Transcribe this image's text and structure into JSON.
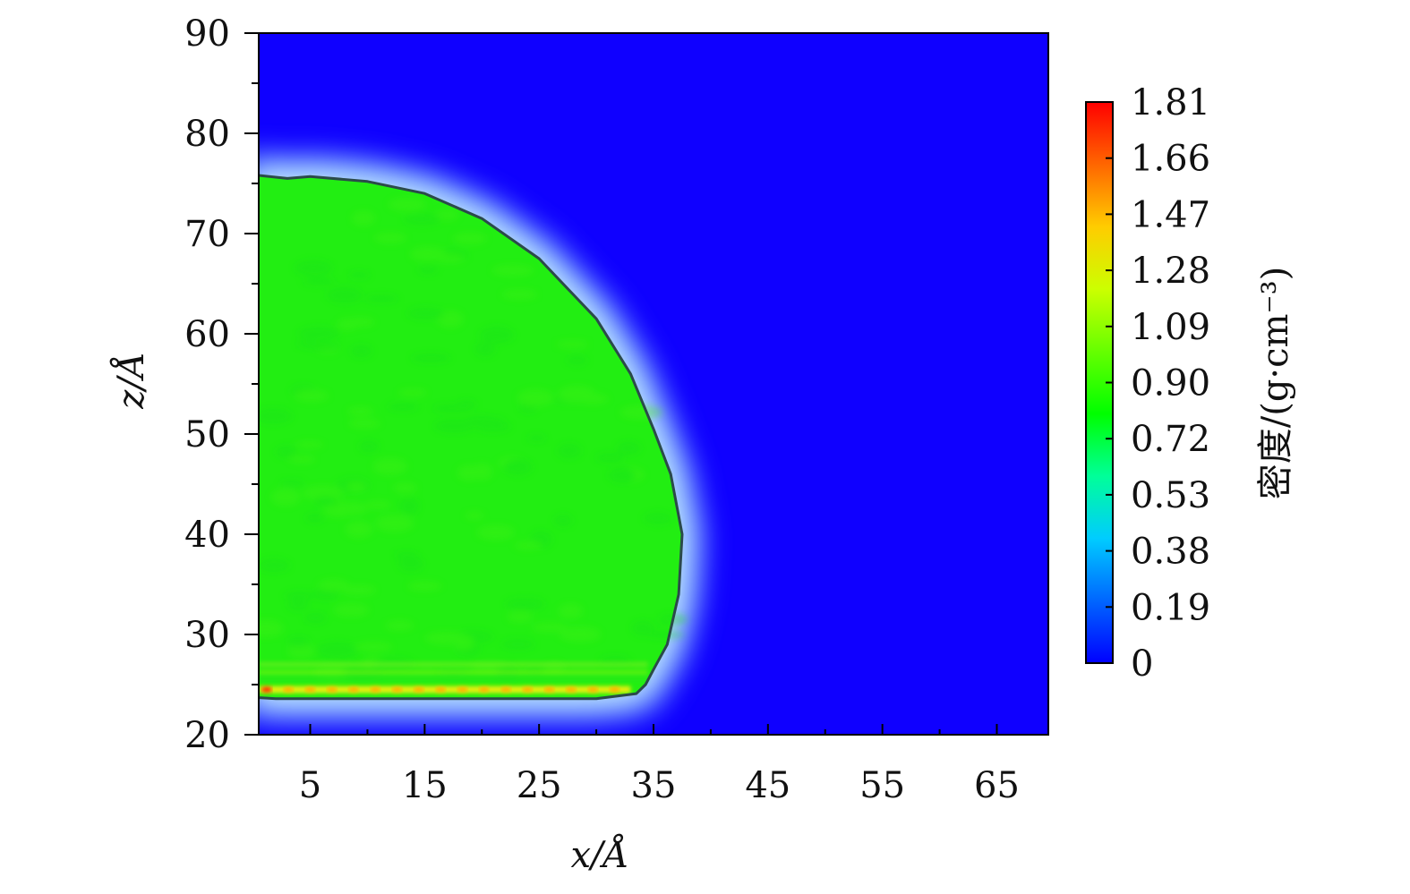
{
  "chart_data": {
    "type": "heatmap",
    "subtype": "density-contour",
    "xlabel": "x/Å",
    "ylabel": "z/Å",
    "xlim": [
      0.5,
      69.5
    ],
    "ylim": [
      20,
      90
    ],
    "x_ticks": [
      5,
      15,
      25,
      35,
      45,
      55,
      65
    ],
    "y_ticks": [
      20,
      30,
      40,
      50,
      60,
      70,
      80,
      90
    ],
    "x_tick_labels": [
      "5",
      "15",
      "25",
      "35",
      "45",
      "55",
      "65"
    ],
    "y_tick_labels": [
      "20",
      "30",
      "40",
      "50",
      "60",
      "70",
      "80",
      "90"
    ],
    "colorbar": {
      "label": "密度/(g·cm⁻³)",
      "min": 0,
      "max": 1.81,
      "tick_values": [
        0,
        0.19,
        0.38,
        0.53,
        0.72,
        0.9,
        1.09,
        1.28,
        1.47,
        1.66,
        1.81
      ],
      "tick_labels": [
        "0",
        "0.19",
        "0.38",
        "0.53",
        "0.72",
        "0.90",
        "1.09",
        "1.28",
        "1.47",
        "1.66",
        "1.81"
      ]
    },
    "background_density": 0,
    "droplet_bulk_density": 0.95,
    "substrate_layer": {
      "z": 24.5,
      "x_range": [
        0.5,
        33
      ],
      "peak_density": 1.81,
      "typical_density": 1.45
    },
    "droplet_boundary_contour": [
      [
        0.5,
        75.8
      ],
      [
        3,
        75.5
      ],
      [
        5,
        75.7
      ],
      [
        10,
        75.2
      ],
      [
        15,
        74.0
      ],
      [
        20,
        71.5
      ],
      [
        25,
        67.5
      ],
      [
        30,
        61.5
      ],
      [
        33,
        56.0
      ],
      [
        35,
        50.5
      ],
      [
        36.5,
        46.0
      ],
      [
        37.5,
        40.0
      ],
      [
        37.2,
        34.0
      ],
      [
        36.2,
        29.0
      ],
      [
        35.0,
        26.5
      ],
      [
        34.3,
        25.0
      ],
      [
        33.5,
        24.1
      ],
      [
        30,
        23.6
      ],
      [
        20,
        23.6
      ],
      [
        10,
        23.6
      ],
      [
        2,
        23.6
      ],
      [
        0.5,
        23.7
      ]
    ],
    "colors": {
      "background": "#0f00ff",
      "droplet": "#22ee12",
      "contour": "#2b4a4a",
      "colormap": [
        "#0000ff",
        "#0066ff",
        "#00ccff",
        "#00ff99",
        "#00ff00",
        "#66ff00",
        "#ccff00",
        "#ffcc00",
        "#ff6600",
        "#ff0000"
      ]
    }
  }
}
